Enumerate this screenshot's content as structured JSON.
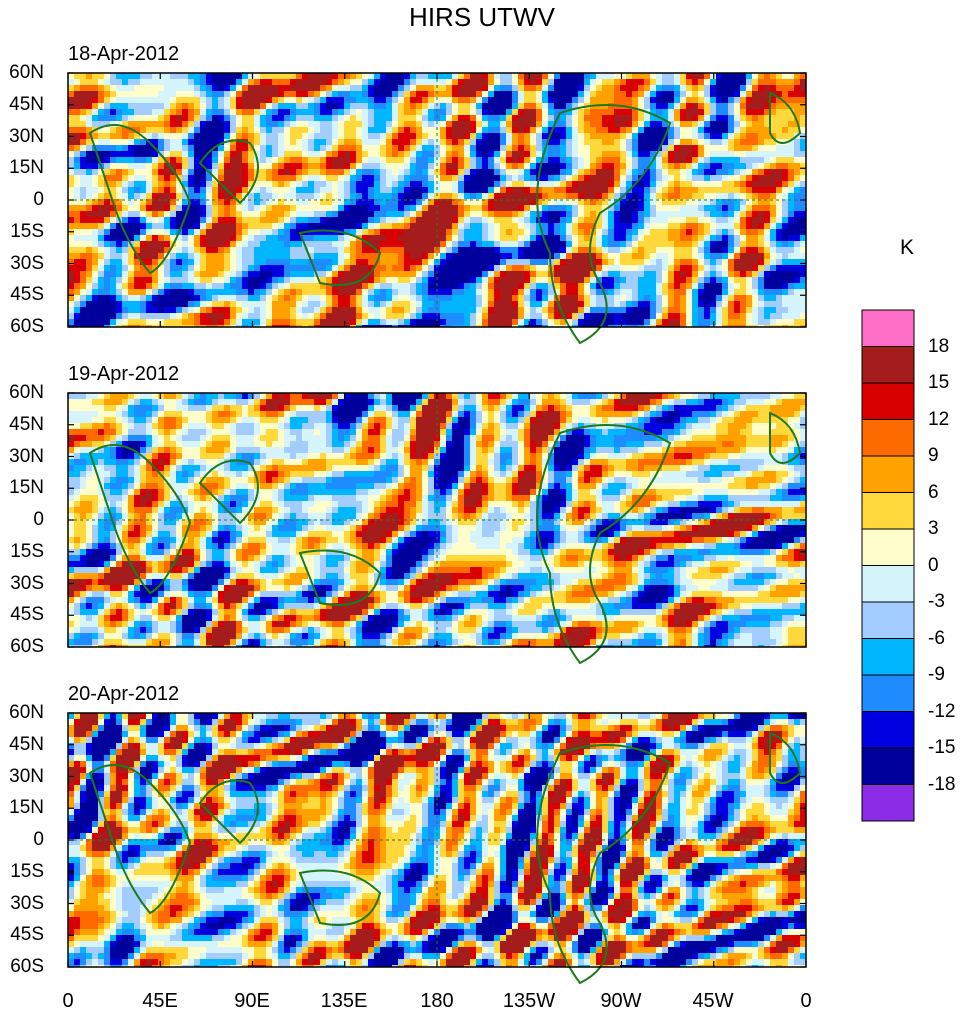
{
  "title": "HIRS UTWV",
  "chart_data": {
    "type": "heatmap",
    "title": "HIRS UTWV",
    "units": "K",
    "panels": [
      {
        "date": "18-Apr-2012"
      },
      {
        "date": "19-Apr-2012"
      },
      {
        "date": "20-Apr-2012"
      }
    ],
    "y_ticks": [
      "60N",
      "45N",
      "30N",
      "15N",
      "0",
      "15S",
      "30S",
      "45S",
      "60S"
    ],
    "x_ticks": [
      "0",
      "45E",
      "90E",
      "135E",
      "180",
      "135W",
      "90W",
      "45W",
      "0"
    ],
    "xlim": [
      0,
      360
    ],
    "ylim": [
      -60,
      60
    ],
    "colorbar": {
      "levels": [
        "18",
        "15",
        "12",
        "9",
        "6",
        "3",
        "0",
        "-3",
        "-6",
        "-9",
        "-12",
        "-15",
        "-18"
      ],
      "colors": [
        "#ff6ec7",
        "#a51c1c",
        "#d80000",
        "#ff6a00",
        "#ffa200",
        "#ffd83c",
        "#fffecb",
        "#d6f4fb",
        "#a4cdff",
        "#00b6ff",
        "#1e8cff",
        "#0000e0",
        "#00009c",
        "#8b2be6"
      ]
    }
  }
}
